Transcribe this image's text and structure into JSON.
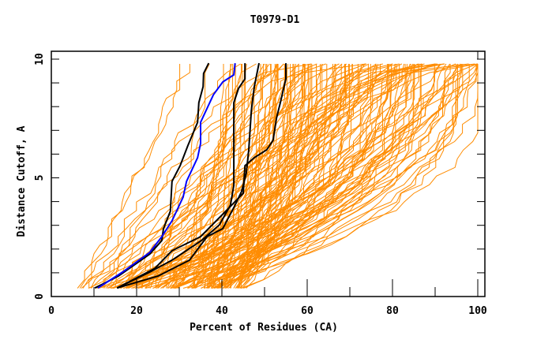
{
  "chart_data": {
    "type": "line",
    "title": "T0979-D1",
    "xlabel": "Percent of Residues (CA)",
    "ylabel": "Distance Cutoff, A",
    "xlim": [
      0,
      100
    ],
    "ylim": [
      0,
      10
    ],
    "x_ticks": [
      0,
      20,
      40,
      60,
      80,
      100
    ],
    "x_minor_step": 10,
    "y_ticks": [
      0,
      5,
      10
    ],
    "y_minor_step": 1,
    "grid": false,
    "legend": null,
    "colors": {
      "background_models": "#ff8c00",
      "highlight_black": "#000000",
      "highlight_blue": "#0000ff",
      "frame": "#000000"
    },
    "series": [
      {
        "name": "highlight-black-1",
        "color": "#000000",
        "x": [
          10.2,
          15.7,
          23.1,
          25.9,
          26.3,
          27.9,
          28.3,
          30.2,
          32.0,
          34.3,
          34.6,
          35.6,
          35.7,
          36.9
        ],
        "y": [
          0.36,
          0.86,
          1.79,
          2.36,
          2.86,
          3.59,
          4.85,
          5.51,
          6.35,
          7.34,
          8.17,
          8.84,
          9.4,
          9.83
        ]
      },
      {
        "name": "highlight-blue",
        "color": "#0000ff",
        "x": [
          10.9,
          16.7,
          23.1,
          25.9,
          28.3,
          30.9,
          31.7,
          34.3,
          35.0,
          35.0,
          38.0,
          40.2,
          42.8,
          43.1
        ],
        "y": [
          0.36,
          1.03,
          1.86,
          2.52,
          3.19,
          4.19,
          4.85,
          5.85,
          6.45,
          7.34,
          8.5,
          9.04,
          9.34,
          9.83
        ]
      },
      {
        "name": "highlight-black-2",
        "color": "#000000",
        "x": [
          15.4,
          23.1,
          28.3,
          35.2,
          39.4,
          42.0,
          42.8,
          42.8,
          43.9,
          45.4,
          45.4
        ],
        "y": [
          0.36,
          1.03,
          1.53,
          2.36,
          3.02,
          3.85,
          4.68,
          8.17,
          8.77,
          9.17,
          9.83
        ]
      },
      {
        "name": "highlight-black-3",
        "color": "#000000",
        "x": [
          15.4,
          25.0,
          32.4,
          36.5,
          40.2,
          43.1,
          44.6,
          45.7,
          46.3,
          46.9,
          47.6,
          48.7
        ],
        "y": [
          0.36,
          0.86,
          1.53,
          2.52,
          2.86,
          3.85,
          4.42,
          5.18,
          6.18,
          7.84,
          8.84,
          9.83
        ]
      },
      {
        "name": "highlight-black-4",
        "color": "#000000",
        "x": [
          15.4,
          24.3,
          28.3,
          35.0,
          40.5,
          45.0,
          45.4,
          47.6,
          50.5,
          52.0,
          52.8,
          53.7,
          55.0,
          55.0
        ],
        "y": [
          0.36,
          1.19,
          1.93,
          2.52,
          3.52,
          4.35,
          5.51,
          5.85,
          6.18,
          6.58,
          7.51,
          8.17,
          9.17,
          9.83
        ]
      }
    ],
    "background_models": {
      "count_estimate": 150,
      "description": "Orange cumulative curves for all other models, starting near 0.35 A and rising to ~9.8 A across 6-100 percent of residues",
      "start_y": 0.35,
      "end_y": 9.8,
      "start_x_range": [
        6,
        45
      ],
      "end_x_range": [
        28,
        100
      ]
    }
  }
}
